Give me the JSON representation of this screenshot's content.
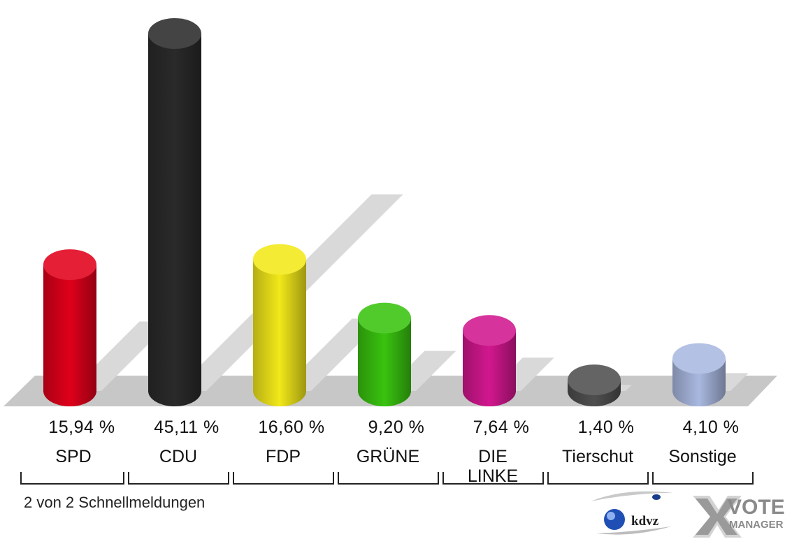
{
  "chart_data": {
    "type": "bar",
    "categories": [
      "SPD",
      "CDU",
      "FDP",
      "GRÜNE",
      "DIE LINKE",
      "Tierschut",
      "Sonstige"
    ],
    "values": [
      15.94,
      45.11,
      16.6,
      9.2,
      7.64,
      1.4,
      4.1
    ],
    "value_labels": [
      "15,94 %",
      "45,11 %",
      "16,60 %",
      "9,20 %",
      "7,64 %",
      "1,40 %",
      "4,10 %"
    ],
    "label_lines": [
      [
        "SPD"
      ],
      [
        "CDU"
      ],
      [
        "FDP"
      ],
      [
        "GRÜNE"
      ],
      [
        "DIE",
        "LINKE"
      ],
      [
        "Tierschut"
      ],
      [
        "Sonstige"
      ]
    ],
    "colors": [
      "#e0001b",
      "#2a2a2a",
      "#f2e81a",
      "#39c30f",
      "#d2178f",
      "#4f4f4f",
      "#a9b8e0"
    ],
    "ylim": [
      0,
      45.11
    ],
    "style": "3d-cylinder"
  },
  "footer": {
    "note": "2 von 2 Schnellmeldungen",
    "logo_kdvz": "kdvz",
    "logo_vote": "VOTE",
    "logo_manager": "MANAGER"
  }
}
